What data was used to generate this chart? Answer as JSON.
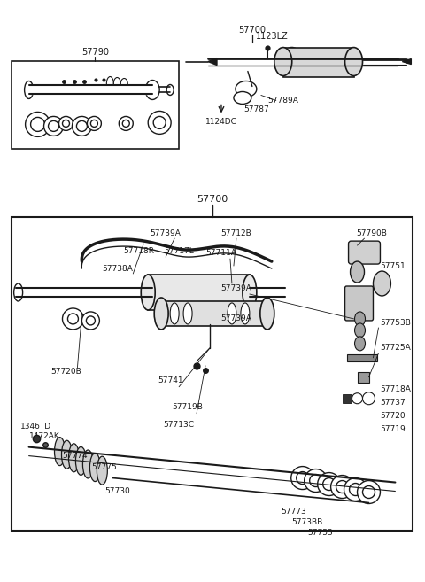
{
  "bg_color": "#ffffff",
  "lc": "#1a1a1a",
  "figsize": [
    4.8,
    6.57
  ],
  "dpi": 100,
  "labels": {
    "inset_label": "57790",
    "top_label": "57700",
    "top_sub": "1123LZ",
    "top_57789A": "57789A",
    "top_57787": "57787",
    "top_1124DC": "1124DC",
    "main_label": "57700",
    "p1": "57739A",
    "p2": "57712B",
    "p3": "57790B",
    "p4": "57718R",
    "p5": "57717L",
    "p6": "57711A",
    "p7": "57739A",
    "p8": "57751",
    "p9": "57738A",
    "p10": "57753B",
    "p11": "57739A",
    "p12": "57725A",
    "p13": "57720B",
    "p14": "57718A",
    "p15": "57737",
    "p16": "57741",
    "p17": "57720",
    "p18": "57719B",
    "p19": "57719",
    "p20": "57713C",
    "p21": "1346TD",
    "p22": "1472AK",
    "p23": "57774",
    "p24": "57775",
    "p25": "57730",
    "p26": "57773",
    "p27": "5773BB",
    "p28": "57753"
  }
}
